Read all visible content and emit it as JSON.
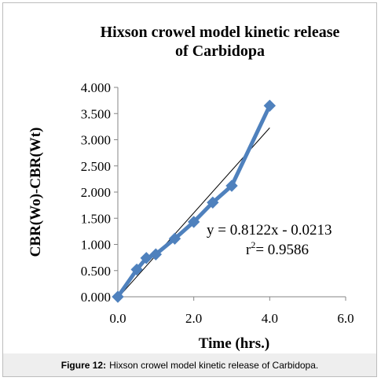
{
  "chart_data": {
    "type": "line",
    "title_line1": "Hixson crowel model kinetic release",
    "title_line2": "of Carbidopa",
    "xlabel": "Time (hrs.)",
    "ylabel": "CBR(Wo)-CBR(Wt)",
    "xlim": [
      0,
      6
    ],
    "ylim": [
      0,
      4
    ],
    "x_ticks": [
      "0.0",
      "2.0",
      "4.0",
      "6.0"
    ],
    "y_ticks": [
      "0.000",
      "0.500",
      "1.000",
      "1.500",
      "2.000",
      "2.500",
      "3.000",
      "3.500",
      "4.000"
    ],
    "grid": false,
    "series": [
      {
        "x": [
          0,
          0.5,
          0.75,
          1,
          1.5,
          2,
          2.5,
          3,
          4
        ],
        "y": [
          0.0,
          0.52,
          0.74,
          0.81,
          1.11,
          1.43,
          1.8,
          2.12,
          3.65
        ],
        "color": "#4f81bd",
        "marker": "diamond"
      }
    ],
    "trendline": {
      "slope": 0.8122,
      "intercept": -0.0213,
      "x_range": [
        0,
        4
      ],
      "color": "#000000"
    },
    "annotation_equation": "y = 0.8122x - 0.0213",
    "annotation_r2_prefix": "r",
    "annotation_r2_sup": "2",
    "annotation_r2_value": "= 0.9586"
  },
  "caption": {
    "label": "Figure 12:",
    "text": "Hixson crowel model kinetic release of Carbidopa."
  }
}
